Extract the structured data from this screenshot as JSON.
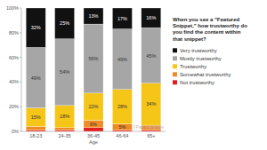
{
  "chart_data": {
    "type": "bar",
    "stacked": true,
    "title": "When you see a \"Featured Snippet,\" how trustworthy do you find the content within that snippet?",
    "x_label": "Age",
    "categories": [
      "18-23",
      "24-35",
      "36-45",
      "46-64",
      "65+"
    ],
    "series": [
      {
        "name": "Very trustworthy",
        "color": "#111111",
        "values": [
          32,
          25,
          13,
          17,
          16
        ],
        "value_labels": [
          "32%",
          "25%",
          "13%",
          "17%",
          "16%"
        ]
      },
      {
        "name": "Mostly trustworthy",
        "color": "#a6a6a6",
        "values": [
          49,
          54,
          56,
          49,
          45
        ],
        "value_labels": [
          "49%",
          "54%",
          "56%",
          "49%",
          "45%"
        ]
      },
      {
        "name": "Trustworthy",
        "color": "#f5c518",
        "values": [
          15,
          18,
          22,
          28,
          34
        ],
        "value_labels": [
          "15%",
          "18%",
          "22%",
          "28%",
          "34%"
        ]
      },
      {
        "name": "Somewhat trustworthy",
        "color": "#f08a24",
        "values": [
          3,
          2,
          6,
          5,
          4
        ],
        "value_labels": [
          null,
          null,
          "6%",
          "5%",
          null
        ]
      },
      {
        "name": "Not trustworthy",
        "color": "#e02020",
        "values": [
          1,
          1,
          3,
          1,
          1
        ],
        "value_labels": [
          null,
          null,
          null,
          null,
          null
        ]
      }
    ],
    "ylim": [
      0,
      100
    ],
    "yticks": [
      {
        "value": 0,
        "label": "0%"
      },
      {
        "value": 20,
        "label": "20%"
      },
      {
        "value": 40,
        "label": "40%"
      },
      {
        "value": 60,
        "label": "60%"
      },
      {
        "value": 80,
        "label": "80%"
      },
      {
        "value": 100,
        "label": "100%"
      }
    ],
    "grid": false,
    "legend": "right",
    "data_labels": true,
    "annotations": [
      "©Path Interactive"
    ]
  }
}
